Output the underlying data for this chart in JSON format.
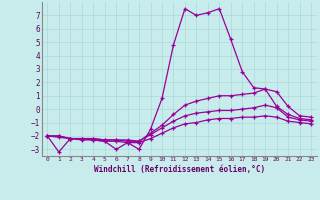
{
  "xlabel": "Windchill (Refroidissement éolien,°C)",
  "background_color": "#c8ecec",
  "grid_color": "#b0d8d8",
  "line_color": "#990099",
  "x_data": [
    0,
    1,
    2,
    3,
    4,
    5,
    6,
    7,
    8,
    9,
    10,
    11,
    12,
    13,
    14,
    15,
    16,
    17,
    18,
    19,
    20,
    21,
    22,
    23
  ],
  "series": [
    [
      -2.0,
      -3.2,
      -2.2,
      -2.2,
      -2.3,
      -2.4,
      -3.0,
      -2.5,
      -3.0,
      -1.5,
      0.8,
      4.8,
      7.5,
      7.0,
      7.2,
      7.5,
      5.2,
      2.8,
      1.6,
      1.5,
      0.2,
      -0.4,
      -0.7,
      -0.8
    ],
    [
      -2.0,
      -2.1,
      -2.2,
      -2.2,
      -2.2,
      -2.3,
      -2.3,
      -2.3,
      -2.4,
      -1.8,
      -1.2,
      -0.4,
      0.3,
      0.6,
      0.8,
      1.0,
      1.0,
      1.1,
      1.2,
      1.5,
      1.3,
      0.2,
      -0.5,
      -0.6
    ],
    [
      -2.0,
      -2.0,
      -2.2,
      -2.2,
      -2.2,
      -2.3,
      -2.3,
      -2.4,
      -2.4,
      -1.9,
      -1.4,
      -0.9,
      -0.5,
      -0.3,
      -0.2,
      -0.1,
      -0.1,
      0.0,
      0.1,
      0.3,
      0.1,
      -0.6,
      -0.8,
      -0.9
    ],
    [
      -2.0,
      -2.0,
      -2.2,
      -2.3,
      -2.3,
      -2.4,
      -2.4,
      -2.5,
      -2.5,
      -2.2,
      -1.8,
      -1.4,
      -1.1,
      -1.0,
      -0.8,
      -0.7,
      -0.7,
      -0.6,
      -0.6,
      -0.5,
      -0.6,
      -0.9,
      -1.0,
      -1.1
    ]
  ],
  "ylim": [
    -3.5,
    8.0
  ],
  "xlim": [
    -0.5,
    23.5
  ],
  "yticks": [
    -3,
    -2,
    -1,
    0,
    1,
    2,
    3,
    4,
    5,
    6,
    7
  ],
  "xticks": [
    0,
    1,
    2,
    3,
    4,
    5,
    6,
    7,
    8,
    9,
    10,
    11,
    12,
    13,
    14,
    15,
    16,
    17,
    18,
    19,
    20,
    21,
    22,
    23
  ],
  "spine_color": "#888888",
  "tick_color": "#660066",
  "xlabel_color": "#660066"
}
